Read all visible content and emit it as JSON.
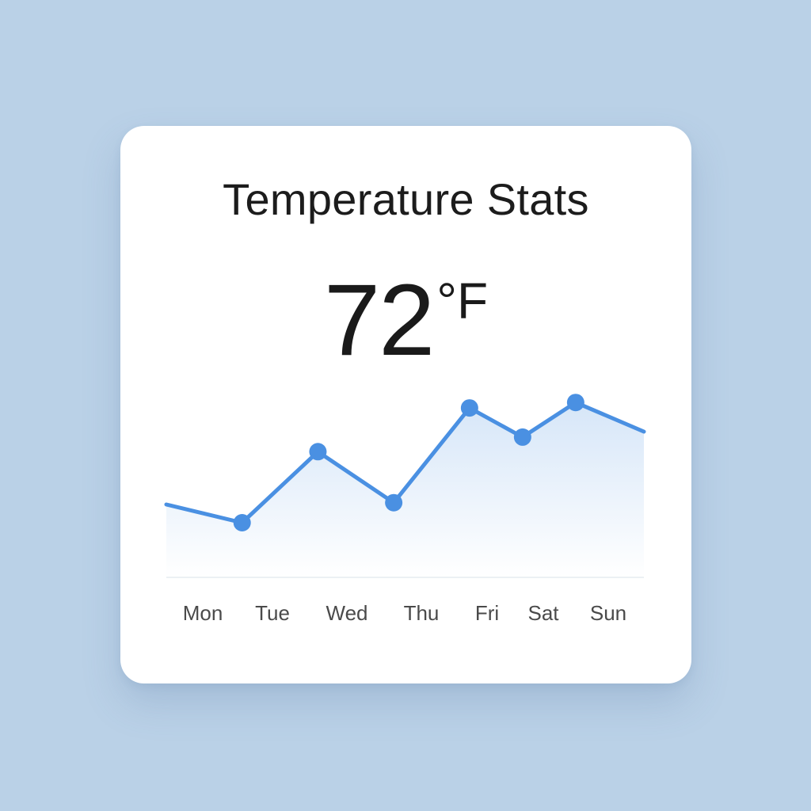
{
  "card": {
    "title": "Temperature Stats",
    "temperature": {
      "value": "72",
      "unit": "°F"
    }
  },
  "chart_data": {
    "type": "area",
    "categories": [
      "Mon",
      "Tue",
      "Wed",
      "Thu",
      "Fri",
      "Sat",
      "Sun"
    ],
    "points": [
      {
        "x": 0.0,
        "y": 0.0
      },
      {
        "x": 1.0,
        "y": -1.0
      },
      {
        "x": 2.0,
        "y": 2.9
      },
      {
        "x": 3.0,
        "y": 0.1
      },
      {
        "x": 4.0,
        "y": 5.3
      },
      {
        "x": 4.7,
        "y": 3.7
      },
      {
        "x": 5.4,
        "y": 5.6
      },
      {
        "x": 6.3,
        "y": 4.0
      }
    ],
    "markers": [
      1,
      2,
      3,
      4,
      5,
      6
    ],
    "ylim": [
      -4,
      6
    ],
    "xlim": [
      0,
      6.3
    ],
    "colors": {
      "line": "#4a90e2",
      "marker": "#4a90e2",
      "fill_top": "#d6e6f8",
      "fill_bottom": "#ffffff",
      "baseline": "#e6ebf1"
    },
    "grid": false,
    "legend": "none"
  }
}
